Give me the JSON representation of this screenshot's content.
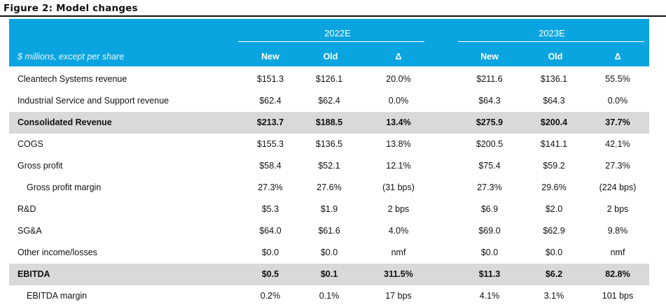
{
  "figure": {
    "title": "Figure 2: Model changes"
  },
  "header": {
    "units": "$ millions, except per share",
    "groups": [
      {
        "label": "2022E"
      },
      {
        "label": "2023E"
      }
    ],
    "columns": [
      "New",
      "Old",
      "Δ",
      "New",
      "Old",
      "Δ"
    ]
  },
  "rows": [
    {
      "label": "Cleantech Systems revenue",
      "values": [
        "$151.3",
        "$126.1",
        "20.0%",
        "$211.6",
        "$136.1",
        "55.5%"
      ]
    },
    {
      "label": "Industrial Service and Support revenue",
      "values": [
        "$62.4",
        "$62.4",
        "0.0%",
        "$64.3",
        "$64.3",
        "0.0%"
      ]
    },
    {
      "label": "Consolidated Revenue",
      "values": [
        "$213.7",
        "$188.5",
        "13.4%",
        "$275.9",
        "$200.4",
        "37.7%"
      ]
    },
    {
      "label": "COGS",
      "values": [
        "$155.3",
        "$136.5",
        "13.8%",
        "$200.5",
        "$141.1",
        "42.1%"
      ]
    },
    {
      "label": "Gross profit",
      "values": [
        "$58.4",
        "$52.1",
        "12.1%",
        "$75.4",
        "$59.2",
        "27.3%"
      ]
    },
    {
      "label": "Gross profit margin",
      "values": [
        "27.3%",
        "27.6%",
        "(31 bps)",
        "27.3%",
        "29.6%",
        "(224 bps)"
      ]
    },
    {
      "label": "R&D",
      "values": [
        "$5.3",
        "$1.9",
        "2 bps",
        "$6.9",
        "$2.0",
        "2 bps"
      ]
    },
    {
      "label": "SG&A",
      "values": [
        "$64.0",
        "$61.6",
        "4.0%",
        "$69.0",
        "$62.9",
        "9.8%"
      ]
    },
    {
      "label": "Other income/losses",
      "values": [
        "$0.0",
        "$0.0",
        "nmf",
        "$0.0",
        "$0.0",
        "nmf"
      ]
    },
    {
      "label": "EBITDA",
      "values": [
        "$0.5",
        "$0.1",
        "311.5%",
        "$11.3",
        "$6.2",
        "82.8%"
      ]
    },
    {
      "label": "EBITDA margin",
      "values": [
        "0.2%",
        "0.1%",
        "17 bps",
        "4.1%",
        "3.1%",
        "101 bps"
      ]
    }
  ]
}
